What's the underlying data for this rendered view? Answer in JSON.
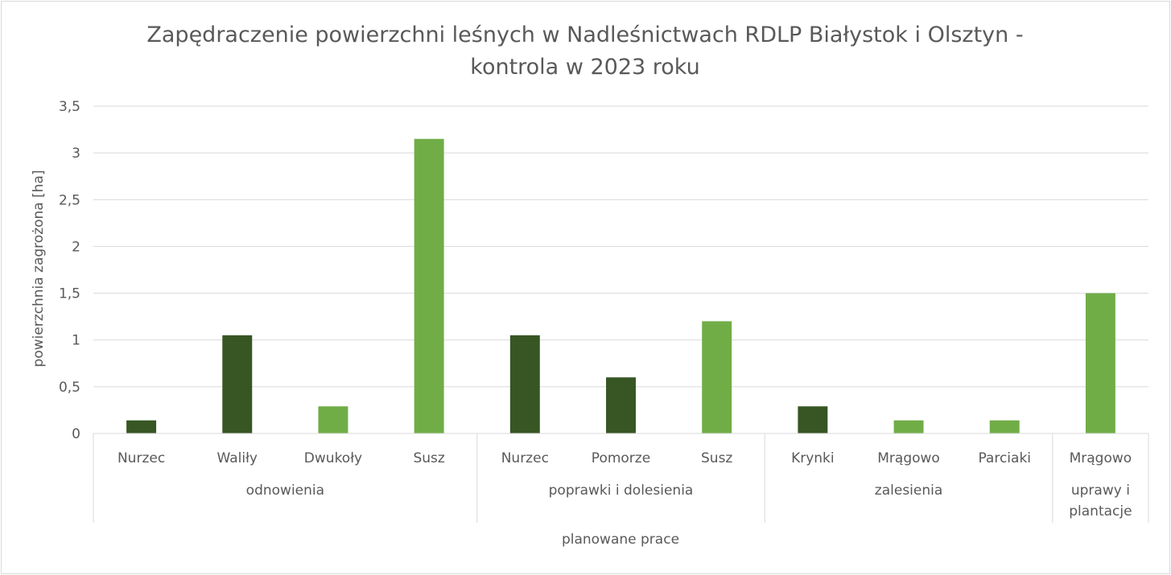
{
  "chart_data": {
    "type": "bar",
    "title_lines": [
      "Zapędraczenie  powierzchni leśnych w Nadleśnictwach RDLP Białystok i Olsztyn -",
      "kontrola w 2023 roku"
    ],
    "ylabel": "powierzchnia zagrożona [ha]",
    "xlabel": "planowane prace",
    "ylim": [
      0,
      3.5
    ],
    "yticks": [
      "0",
      "0,5",
      "1",
      "1,5",
      "2",
      "2,5",
      "3",
      "3,5"
    ],
    "yticks_values": [
      0,
      0.5,
      1,
      1.5,
      2,
      2.5,
      3,
      3.5
    ],
    "grid": true,
    "colors": {
      "dark": "#375623",
      "light": "#70ad47",
      "grid": "#d9d9d9",
      "text": "#595959"
    },
    "groups": [
      {
        "name_lines": [
          "odnowienia"
        ],
        "categories": [
          {
            "name": "Nurzec",
            "value": 0.14,
            "color": "dark"
          },
          {
            "name": "Waliły",
            "value": 1.05,
            "color": "dark"
          },
          {
            "name": "Dwukoły",
            "value": 0.29,
            "color": "light"
          },
          {
            "name": "Susz",
            "value": 3.15,
            "color": "light"
          }
        ]
      },
      {
        "name_lines": [
          "poprawki i dolesienia"
        ],
        "categories": [
          {
            "name": "Nurzec",
            "value": 1.05,
            "color": "dark"
          },
          {
            "name": "Pomorze",
            "value": 0.6,
            "color": "dark"
          },
          {
            "name": "Susz",
            "value": 1.2,
            "color": "light"
          }
        ]
      },
      {
        "name_lines": [
          "zalesienia"
        ],
        "categories": [
          {
            "name": "Krynki",
            "value": 0.29,
            "color": "dark"
          },
          {
            "name": "Mrągowo",
            "value": 0.14,
            "color": "light"
          },
          {
            "name": "Parciaki",
            "value": 0.14,
            "color": "light"
          }
        ]
      },
      {
        "name_lines": [
          "uprawy i",
          "plantacje"
        ],
        "categories": [
          {
            "name": "Mrągowo",
            "value": 1.5,
            "color": "light"
          }
        ]
      }
    ]
  }
}
